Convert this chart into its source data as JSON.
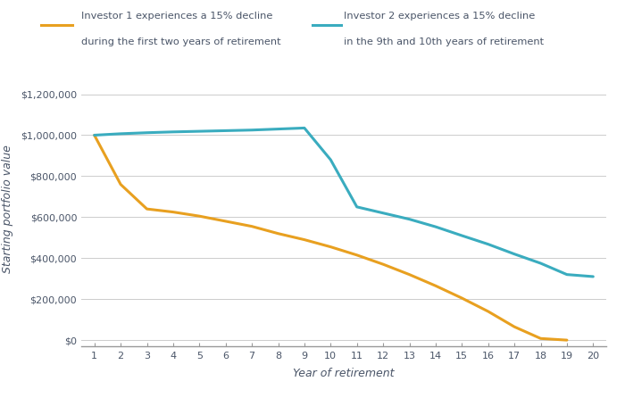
{
  "investor1_x": [
    1,
    2,
    3,
    4,
    5,
    6,
    7,
    8,
    9,
    10,
    11,
    12,
    13,
    14,
    15,
    16,
    17,
    18,
    19
  ],
  "investor1_y": [
    1000000,
    760000,
    640000,
    625000,
    605000,
    580000,
    555000,
    520000,
    490000,
    455000,
    415000,
    370000,
    320000,
    265000,
    205000,
    140000,
    65000,
    8000,
    0
  ],
  "investor2_x": [
    1,
    2,
    3,
    4,
    5,
    6,
    7,
    8,
    9,
    10,
    11,
    12,
    13,
    14,
    15,
    16,
    17,
    18,
    19,
    20
  ],
  "investor2_y": [
    1000000,
    1007000,
    1012000,
    1016000,
    1019000,
    1022000,
    1025000,
    1030000,
    1035000,
    880000,
    650000,
    620000,
    590000,
    553000,
    510000,
    468000,
    420000,
    375000,
    320000,
    310000
  ],
  "investor1_color": "#E8A020",
  "investor2_color": "#3AACBF",
  "investor1_label_line1": "Investor 1 experiences a 15% decline",
  "investor1_label_line2": "during the first two years of retirement",
  "investor2_label_line1": "Investor 2 experiences a 15% decline",
  "investor2_label_line2": "in the 9th and 10th years of retirement",
  "xlabel": "Year of retirement",
  "ylabel": "Starting portfolio value",
  "yticks": [
    0,
    200000,
    400000,
    600000,
    800000,
    1000000,
    1200000
  ],
  "ytick_labels": [
    "$0",
    "$200,000",
    "$400,000",
    "$600,000",
    "$800,000",
    "$1,000,000",
    "$1,200,000"
  ],
  "xticks": [
    1,
    2,
    3,
    4,
    5,
    6,
    7,
    8,
    9,
    10,
    11,
    12,
    13,
    14,
    15,
    16,
    17,
    18,
    19,
    20
  ],
  "ylim": [
    -30000,
    1310000
  ],
  "xlim": [
    0.5,
    20.5
  ],
  "background_color": "#ffffff",
  "line_width": 2.2,
  "text_color": "#4A5568",
  "grid_color": "#cccccc",
  "axis_color": "#999999"
}
